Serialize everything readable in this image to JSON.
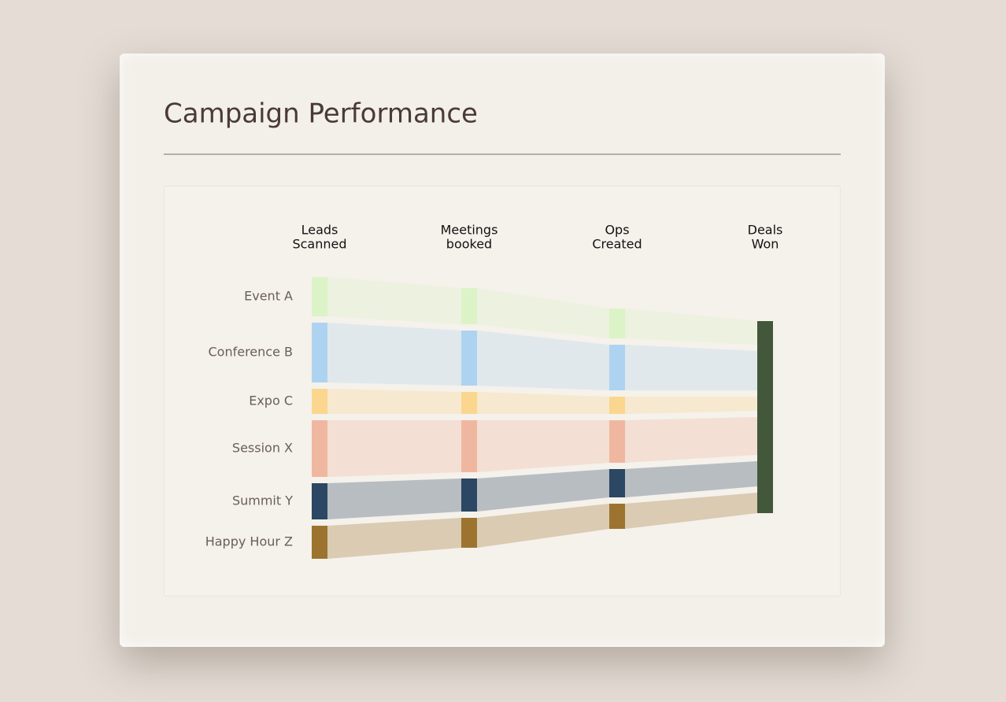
{
  "chart_data": {
    "type": "sankey",
    "title": "Campaign Performance",
    "stages": [
      [
        "Leads",
        "Scanned"
      ],
      [
        "Meetings",
        "booked"
      ],
      [
        "Ops",
        "Created"
      ],
      [
        "Deals",
        "Won"
      ]
    ],
    "sink_color": "#43573a",
    "series": [
      {
        "name": "Event A",
        "color": "#dcf3c8",
        "values": [
          50,
          46,
          38,
          30
        ]
      },
      {
        "name": "Conference B",
        "color": "#aed3f0",
        "values": [
          76,
          70,
          58,
          50
        ]
      },
      {
        "name": "Expo C",
        "color": "#fbd68e",
        "values": [
          32,
          28,
          22,
          18
        ]
      },
      {
        "name": "Session X",
        "color": "#f0b7a0",
        "values": [
          72,
          66,
          54,
          48
        ]
      },
      {
        "name": "Summit Y",
        "color": "#2b4763",
        "values": [
          46,
          42,
          36,
          32
        ]
      },
      {
        "name": "Happy Hour Z",
        "color": "#9c7430",
        "values": [
          42,
          38,
          32,
          26
        ]
      }
    ]
  }
}
